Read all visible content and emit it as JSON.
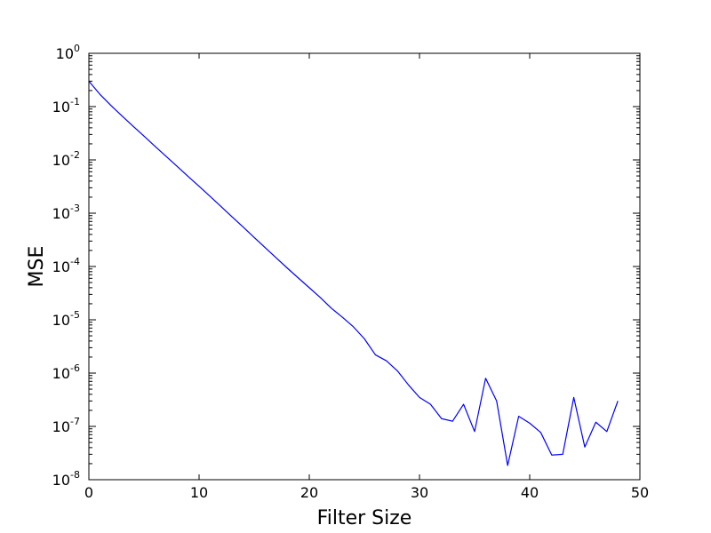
{
  "chart_data": {
    "type": "line",
    "xlabel": "Filter Size",
    "ylabel": "MSE",
    "xlim": [
      0,
      50
    ],
    "ylim": [
      1e-08,
      1
    ],
    "yscale": "log",
    "grid": false,
    "x_ticks": [
      0,
      10,
      20,
      30,
      40,
      50
    ],
    "y_ticks": [
      {
        "mantissa": "10",
        "exp": "0",
        "value": 1
      },
      {
        "mantissa": "10",
        "exp": "-1",
        "value": 0.1
      },
      {
        "mantissa": "10",
        "exp": "-2",
        "value": 0.01
      },
      {
        "mantissa": "10",
        "exp": "-3",
        "value": 0.001
      },
      {
        "mantissa": "10",
        "exp": "-4",
        "value": 0.0001
      },
      {
        "mantissa": "10",
        "exp": "-5",
        "value": 1e-05
      },
      {
        "mantissa": "10",
        "exp": "-6",
        "value": 1e-06
      },
      {
        "mantissa": "10",
        "exp": "-7",
        "value": 1e-07
      },
      {
        "mantissa": "10",
        "exp": "-8",
        "value": 1e-08
      }
    ],
    "series": [
      {
        "color": "#0000ff",
        "x": [
          0,
          1,
          2,
          3,
          4,
          5,
          6,
          7,
          8,
          9,
          10,
          11,
          12,
          13,
          14,
          15,
          16,
          17,
          18,
          19,
          20,
          21,
          22,
          23,
          24,
          25,
          26,
          27,
          28,
          29,
          30,
          31,
          32,
          33,
          34,
          35,
          36,
          37,
          38,
          39,
          40,
          41,
          42,
          43,
          44,
          45,
          46,
          47,
          48
        ],
        "y": [
          0.3,
          0.17,
          0.105,
          0.067,
          0.043,
          0.028,
          0.018,
          0.0117,
          0.0076,
          0.0049,
          0.0032,
          0.00207,
          0.00133,
          0.00085,
          0.00055,
          0.00035,
          0.000225,
          0.000145,
          9.35e-05,
          6.1e-05,
          4e-05,
          2.62e-05,
          1.65e-05,
          1.12e-05,
          7.4e-06,
          4.4e-06,
          2.2e-06,
          1.7e-06,
          1.1e-06,
          6e-07,
          3.5e-07,
          2.6e-07,
          1.4e-07,
          1.25e-07,
          2.6e-07,
          8e-08,
          8e-07,
          3e-07,
          1.85e-08,
          1.55e-07,
          1.15e-07,
          7.7e-08,
          2.9e-08,
          3e-08,
          3.5e-07,
          4.1e-08,
          1.2e-07,
          8e-08,
          3e-07
        ]
      }
    ]
  }
}
